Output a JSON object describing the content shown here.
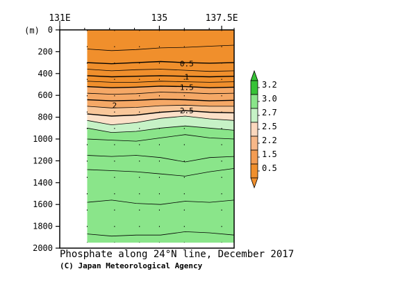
{
  "chart_data": {
    "type": "contour",
    "title": "Phosphate along 24°N line, December 2017",
    "credit": "(C) Japan Meteorological Agency",
    "y_unit_label": "(m)",
    "x_ticks": [
      {
        "value": 131,
        "label": "131E"
      },
      {
        "value": 135,
        "label": "135"
      },
      {
        "value": 137.5,
        "label": "137.5E"
      }
    ],
    "xlim": [
      131,
      138
    ],
    "ylim": [
      0,
      2000
    ],
    "y_ticks": [
      0,
      200,
      400,
      600,
      800,
      1000,
      1200,
      1400,
      1600,
      1800,
      2000
    ],
    "data_xlim": [
      132.1,
      138
    ],
    "station_lon": [
      132.1,
      133.2,
      134.2,
      135.0,
      136.0,
      137.5
    ],
    "contour_levels": [
      0.25,
      0.5,
      0.75,
      1.0,
      1.25,
      1.5,
      1.75,
      2.0,
      2.25,
      2.5,
      2.7,
      3.0
    ],
    "contour_depths": [
      {
        "level": 0.25,
        "depths": [
          175,
          190,
          180,
          165,
          160,
          150,
          140
        ]
      },
      {
        "level": 0.5,
        "depths": [
          300,
          310,
          300,
          290,
          300,
          305,
          300
        ]
      },
      {
        "level": 0.75,
        "depths": [
          360,
          375,
          365,
          360,
          370,
          380,
          375
        ]
      },
      {
        "level": 1.0,
        "depths": [
          420,
          430,
          425,
          420,
          425,
          430,
          425
        ]
      },
      {
        "level": 1.25,
        "depths": [
          470,
          480,
          480,
          470,
          475,
          480,
          475
        ]
      },
      {
        "level": 1.5,
        "depths": [
          520,
          530,
          525,
          515,
          520,
          530,
          525
        ]
      },
      {
        "level": 1.75,
        "depths": [
          580,
          590,
          585,
          570,
          575,
          585,
          580
        ]
      },
      {
        "level": 2.0,
        "depths": [
          640,
          650,
          645,
          635,
          640,
          650,
          645
        ]
      },
      {
        "level": 2.25,
        "depths": [
          700,
          715,
          710,
          695,
          690,
          700,
          700
        ]
      },
      {
        "level": 2.5,
        "depths": [
          770,
          790,
          780,
          755,
          740,
          755,
          760
        ]
      },
      {
        "level": 2.7,
        "depths": [
          830,
          870,
          850,
          810,
          790,
          815,
          830
        ]
      },
      {
        "level": 3.0,
        "depths": [
          900,
          940,
          930,
          900,
          880,
          900,
          920
        ]
      }
    ],
    "contour_labels": [
      {
        "text": "0.5",
        "lon": 136.1,
        "depth": 310
      },
      {
        "text": "1",
        "lon": 136.1,
        "depth": 430
      },
      {
        "text": "1.5",
        "lon": 136.1,
        "depth": 525
      },
      {
        "text": "2",
        "lon": 133.2,
        "depth": 690
      },
      {
        "text": "2.5",
        "lon": 136.1,
        "depth": 740
      }
    ],
    "deep_contours": [
      {
        "depths": [
          1000,
          1010,
          1020,
          990,
          960,
          990,
          1000
        ]
      },
      {
        "depths": [
          1150,
          1160,
          1150,
          1170,
          1210,
          1170,
          1160
        ]
      },
      {
        "depths": [
          1280,
          1290,
          1300,
          1320,
          1340,
          1300,
          1270
        ]
      },
      {
        "depths": [
          1580,
          1560,
          1590,
          1600,
          1570,
          1580,
          1560
        ]
      },
      {
        "depths": [
          1870,
          1890,
          1880,
          1880,
          1850,
          1860,
          1880
        ]
      }
    ],
    "legend": {
      "labels": [
        "3.2",
        "3.0",
        "2.7",
        "2.5",
        "2.2",
        "1.5",
        "0.5"
      ],
      "colors": [
        "#37c337",
        "#8ae58a",
        "#c6f2c6",
        "#fbd8be",
        "#f7b788",
        "#f39c52",
        "#f08f2c"
      ]
    },
    "colors": {
      "orange_deep": "#f08f2c",
      "orange_mid": "#f5a866",
      "orange_light": "#f9c79a",
      "peach": "#fbe0c8",
      "green_light": "#c6f2c6",
      "green": "#8ae58a",
      "green_deep": "#37c337"
    }
  }
}
